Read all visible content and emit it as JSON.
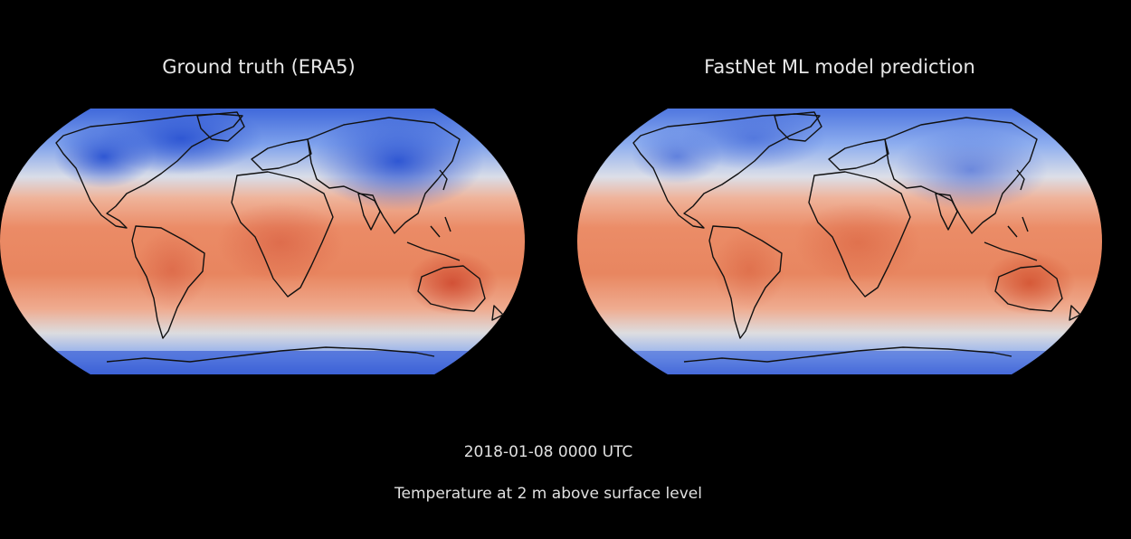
{
  "panels": [
    {
      "title": "Ground truth (ERA5)",
      "cold_intensity": 1.0
    },
    {
      "title": "FastNet ML model prediction",
      "cold_intensity": 0.78
    }
  ],
  "caption": {
    "timestamp": "2018-01-08 0000 UTC",
    "variable": "Temperature at 2 m above surface level"
  },
  "colors": {
    "background": "#000000",
    "cold": "#3b63d8",
    "cool": "#8fb0ee",
    "neutral": "#dcdcdc",
    "warm": "#ef9a76",
    "hot": "#e4663f",
    "coastline": "#111111"
  }
}
